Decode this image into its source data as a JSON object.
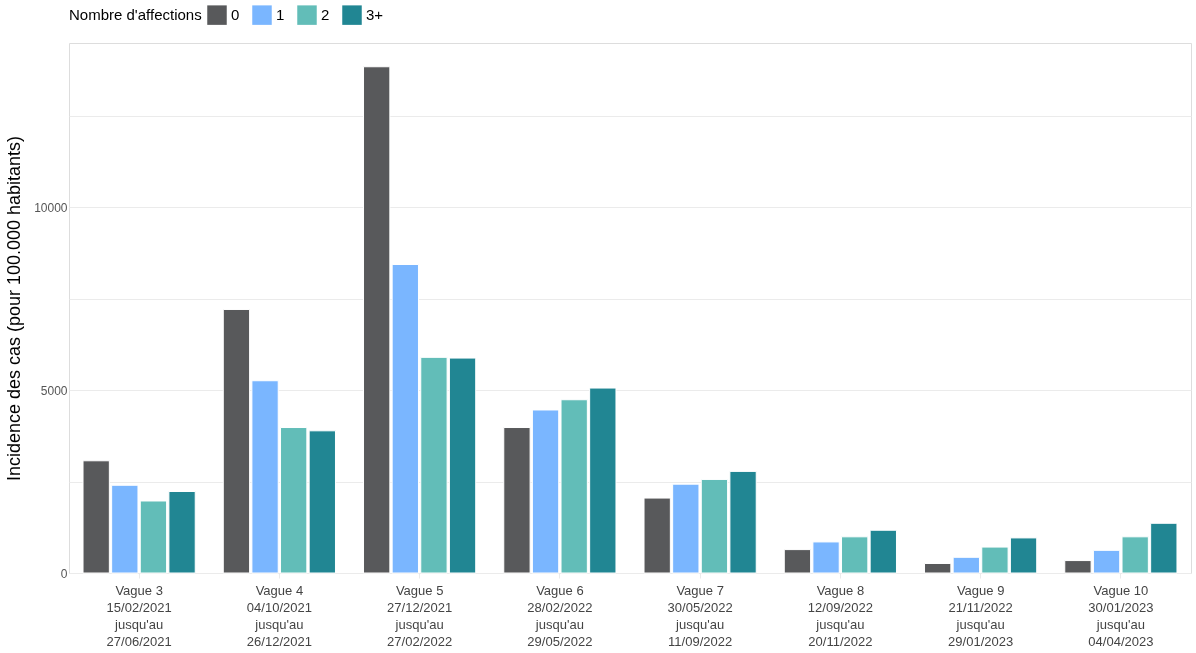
{
  "chart_data": {
    "type": "bar",
    "ylabel": "Incidence des cas (pour 100.000 habitants)",
    "legend_title": "Nombre d'affections",
    "legend": "top",
    "categories": [
      "Vague 3\n15/02/2021\njusqu'au\n27/06/2021",
      "Vague 4\n04/10/2021\njusqu'au\n26/12/2021",
      "Vague 5\n27/12/2021\njusqu'au\n27/02/2022",
      "Vague 6\n28/02/2022\njusqu'au\n29/05/2022",
      "Vague 7\n30/05/2022\njusqu'au\n11/09/2022",
      "Vague 8\n12/09/2022\njusqu'au\n20/11/2022",
      "Vague 9\n21/11/2022\njusqu'au\n29/01/2023",
      "Vague 10\n30/01/2023\njusqu'au\n04/04/2023"
    ],
    "series": [
      {
        "name": "0",
        "color": "#58595b",
        "values": [
          3070,
          7210,
          13850,
          3980,
          2050,
          640,
          260,
          340
        ]
      },
      {
        "name": "1",
        "color": "#7ab6ff",
        "values": [
          2400,
          5260,
          8440,
          4460,
          2430,
          850,
          430,
          620
        ]
      },
      {
        "name": "2",
        "color": "#62bdb8",
        "values": [
          1970,
          3980,
          5900,
          4740,
          2560,
          990,
          710,
          990
        ]
      },
      {
        "name": "3+",
        "color": "#218693",
        "values": [
          2230,
          3890,
          5880,
          5060,
          2780,
          1170,
          960,
          1360
        ]
      }
    ],
    "ylim": [
      0,
      14500
    ],
    "yticks": [
      0,
      {
        "value": 2500,
        "label": null
      },
      5000,
      {
        "value": 7500,
        "label": null
      },
      10000,
      {
        "value": 12500,
        "label": null
      }
    ],
    "grid": "y"
  }
}
